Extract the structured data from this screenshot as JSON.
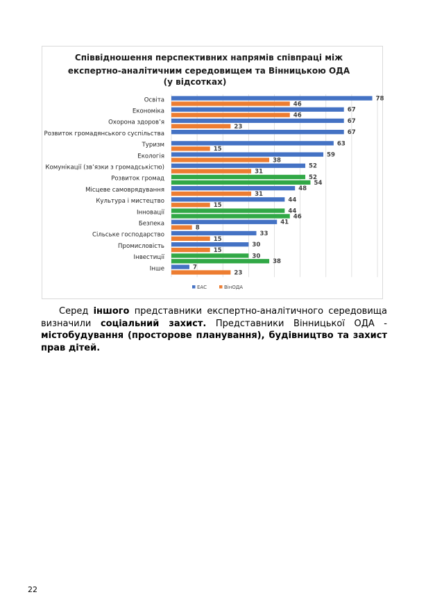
{
  "chart_data": {
    "type": "bar",
    "orientation": "horizontal",
    "title": [
      "Співвідношення перспективних напрямів співпраці між",
      "експертно-аналітичним середовищем та Вінницькою ОДА",
      "(у відсотках)"
    ],
    "legend_position": "bottom",
    "grid": true,
    "xlim": [
      0,
      80
    ],
    "categories": [
      {
        "label": "Освіта",
        "bars": [
          {
            "s": "EAC",
            "v": 78
          },
          {
            "s": "ВінОДА",
            "v": 46
          }
        ]
      },
      {
        "label": "Економіка",
        "bars": [
          {
            "s": "EAC",
            "v": 67
          },
          {
            "s": "ВінОДА",
            "v": 46
          }
        ]
      },
      {
        "label": "Охорона здоров’я",
        "bars": [
          {
            "s": "EAC",
            "v": 67
          },
          {
            "s": "ВінОДА",
            "v": 23
          }
        ]
      },
      {
        "label": "Розвиток громадянського суспільства",
        "bars": [
          {
            "s": "EAC",
            "v": 67
          }
        ]
      },
      {
        "label": "Туризм",
        "bars": [
          {
            "s": "EAC",
            "v": 63
          },
          {
            "s": "ВінОДА",
            "v": 15
          }
        ]
      },
      {
        "label": "Екологія",
        "bars": [
          {
            "s": "EAC",
            "v": 59
          },
          {
            "s": "ВінОДА",
            "v": 38
          }
        ]
      },
      {
        "label": "Комунікації (зв’язки з громадськістю)",
        "bars": [
          {
            "s": "EAC",
            "v": 52
          },
          {
            "s": "ВінОДА",
            "v": 31
          }
        ]
      },
      {
        "label": "Розвиток громад",
        "bars": [
          {
            "s": "green",
            "v": 52
          },
          {
            "s": "green",
            "v": 54
          }
        ]
      },
      {
        "label": "Місцеве самоврядування",
        "bars": [
          {
            "s": "EAC",
            "v": 48
          },
          {
            "s": "ВінОДА",
            "v": 31
          }
        ]
      },
      {
        "label": "Культура і мистецтво",
        "bars": [
          {
            "s": "EAC",
            "v": 44
          },
          {
            "s": "ВінОДА",
            "v": 15
          }
        ]
      },
      {
        "label": "Інновації",
        "bars": [
          {
            "s": "green",
            "v": 44
          },
          {
            "s": "green",
            "v": 46
          }
        ]
      },
      {
        "label": "Безпека",
        "bars": [
          {
            "s": "EAC",
            "v": 41
          },
          {
            "s": "ВінОДА",
            "v": 8
          }
        ]
      },
      {
        "label": "Сільське господарство",
        "bars": [
          {
            "s": "EAC",
            "v": 33
          },
          {
            "s": "ВінОДА",
            "v": 15
          }
        ]
      },
      {
        "label": "Промисловість",
        "bars": [
          {
            "s": "EAC",
            "v": 30
          },
          {
            "s": "ВінОДА",
            "v": 15
          }
        ]
      },
      {
        "label": "Інвестиції",
        "bars": [
          {
            "s": "green",
            "v": 30
          },
          {
            "s": "green",
            "v": 38
          }
        ]
      },
      {
        "label": "Інше",
        "bars": [
          {
            "s": "EAC",
            "v": 7
          },
          {
            "s": "ВінОДА",
            "v": 23
          }
        ]
      }
    ],
    "series": [
      {
        "name": "EAC",
        "color": "#4472c4"
      },
      {
        "name": "ВінОДА",
        "color": "#ed7d31"
      }
    ],
    "highlight_color": "#31a846"
  },
  "text": {
    "p1": "Серед",
    "p2": "іншого",
    "p3": "представники експертно-аналітичного середовища визначили",
    "p4": "соціальний захист.",
    "p5": "Представники Вінницької ОДА -",
    "p6": "містобудування (просторове планування), будівництво та захист прав дітей."
  },
  "page_number": "22"
}
